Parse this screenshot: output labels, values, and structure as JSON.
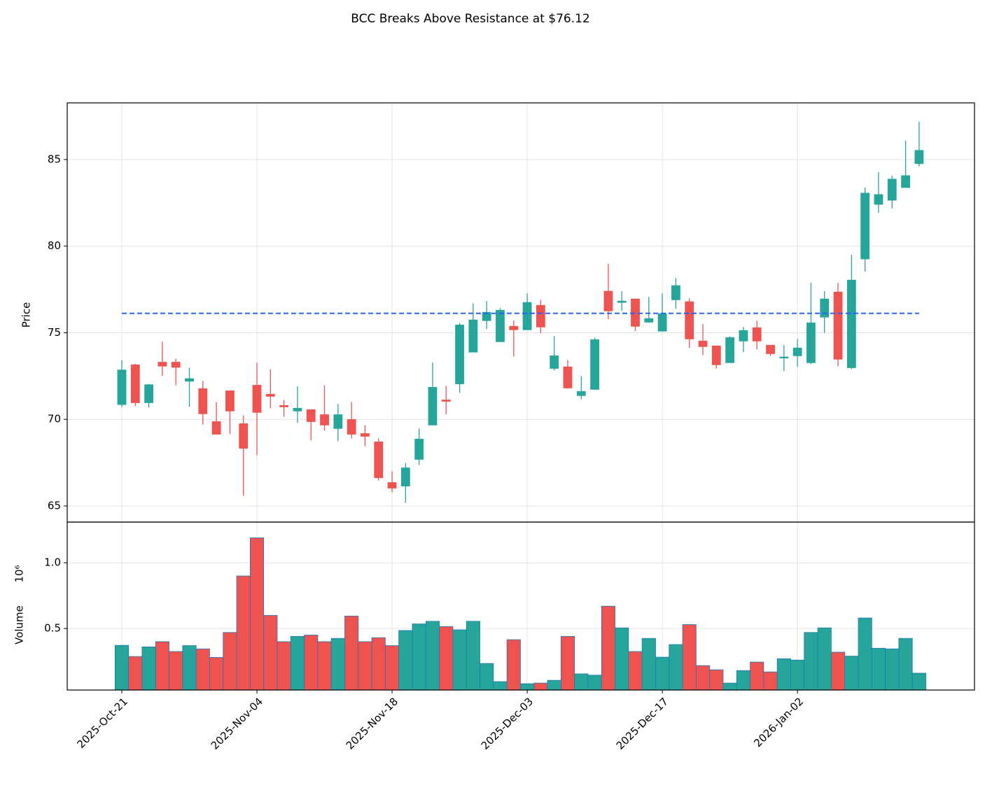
{
  "chart_data": {
    "type": "candlestick",
    "title": "BCC Breaks Above Resistance at $76.12",
    "ylabel": "Price",
    "volume_ylabel": "Volume",
    "volume_scale_label": "10⁶",
    "categories": [
      "2025-Oct-21",
      null,
      null,
      null,
      null,
      null,
      null,
      null,
      null,
      null,
      "2025-Nov-04",
      null,
      null,
      null,
      null,
      null,
      null,
      null,
      null,
      null,
      "2025-Nov-18",
      null,
      null,
      null,
      null,
      null,
      null,
      null,
      null,
      null,
      "2025-Dec-03",
      null,
      null,
      null,
      null,
      null,
      null,
      null,
      null,
      null,
      "2025-Dec-17",
      null,
      null,
      null,
      null,
      null,
      null,
      null,
      null,
      null,
      "2026-Jan-02",
      null,
      null,
      null,
      null,
      null,
      null,
      null,
      null,
      null
    ],
    "open": [
      70.85,
      73.15,
      70.96,
      73.3,
      73.3,
      72.2,
      71.77,
      69.87,
      71.65,
      69.75,
      71.97,
      71.45,
      70.8,
      70.48,
      70.56,
      70.27,
      69.47,
      69.99,
      69.18,
      68.7,
      66.35,
      66.15,
      67.69,
      69.67,
      71.12,
      72.05,
      73.88,
      75.7,
      74.48,
      75.37,
      75.17,
      76.58,
      72.94,
      73.03,
      71.37,
      71.73,
      77.4,
      76.75,
      76.95,
      75.61,
      75.09,
      76.9,
      76.79,
      74.52,
      74.24,
      73.27,
      74.52,
      75.29,
      74.28,
      73.55,
      73.67,
      73.27,
      75.9,
      77.35,
      72.98,
      79.26,
      82.41,
      82.65,
      83.38,
      84.76
    ],
    "high": [
      73.4,
      73.2,
      72.05,
      74.48,
      73.5,
      72.98,
      72.22,
      71.0,
      71.65,
      70.23,
      73.27,
      72.9,
      71.12,
      71.9,
      70.56,
      71.97,
      70.88,
      71.0,
      69.67,
      68.9,
      67.0,
      67.48,
      69.47,
      73.27,
      71.93,
      75.57,
      76.7,
      76.83,
      76.42,
      75.7,
      77.27,
      76.9,
      74.8,
      73.43,
      72.5,
      74.72,
      78.97,
      77.4,
      76.95,
      77.07,
      77.27,
      78.16,
      76.99,
      75.5,
      74.24,
      74.8,
      75.33,
      75.7,
      74.28,
      74.28,
      74.64,
      77.88,
      77.4,
      77.88,
      79.5,
      83.38,
      84.27,
      84.07,
      86.09,
      87.18
    ],
    "low": [
      70.7,
      70.76,
      70.68,
      72.5,
      71.97,
      70.72,
      69.7,
      69.14,
      69.14,
      65.58,
      67.93,
      70.64,
      70.15,
      69.79,
      68.78,
      69.34,
      68.74,
      68.9,
      68.45,
      66.47,
      65.78,
      65.18,
      67.36,
      69.67,
      70.28,
      71.53,
      73.88,
      75.21,
      74.48,
      73.63,
      75.17,
      74.97,
      72.82,
      71.77,
      71.16,
      71.73,
      75.78,
      76.26,
      75.09,
      75.57,
      75.09,
      76.38,
      74.12,
      73.71,
      72.94,
      73.27,
      73.88,
      74.04,
      73.67,
      72.78,
      73.03,
      73.19,
      75.0,
      73.07,
      72.9,
      78.53,
      81.93,
      82.17,
      83.38,
      84.6
    ],
    "close": [
      72.85,
      70.96,
      72.0,
      73.07,
      73.0,
      72.35,
      70.32,
      69.14,
      70.48,
      68.33,
      70.4,
      71.33,
      70.72,
      70.64,
      69.87,
      69.67,
      70.27,
      69.14,
      69.02,
      66.63,
      66.03,
      67.2,
      68.86,
      71.85,
      71.04,
      75.45,
      75.74,
      76.18,
      76.3,
      75.17,
      76.75,
      75.33,
      73.67,
      71.81,
      71.61,
      74.6,
      76.26,
      76.83,
      75.37,
      75.82,
      76.1,
      77.72,
      74.64,
      74.2,
      73.15,
      74.72,
      75.13,
      74.52,
      73.79,
      73.6,
      74.12,
      75.57,
      76.95,
      73.47,
      78.04,
      83.06,
      82.98,
      83.87,
      84.07,
      85.53
    ],
    "volume": [
      0.372,
      0.287,
      0.36,
      0.4,
      0.325,
      0.37,
      0.345,
      0.28,
      0.47,
      0.9,
      1.19,
      0.6,
      0.4,
      0.44,
      0.45,
      0.4,
      0.425,
      0.595,
      0.4,
      0.43,
      0.37,
      0.485,
      0.535,
      0.555,
      0.515,
      0.49,
      0.555,
      0.234,
      0.096,
      0.415,
      0.08,
      0.085,
      0.106,
      0.44,
      0.155,
      0.145,
      0.67,
      0.505,
      0.325,
      0.425,
      0.282,
      0.378,
      0.53,
      0.218,
      0.186,
      0.085,
      0.18,
      0.245,
      0.17,
      0.27,
      0.26,
      0.47,
      0.505,
      0.32,
      0.29,
      0.58,
      0.35,
      0.345,
      0.425,
      0.16
    ],
    "up_color": "#26a69a",
    "down_color": "#ef5350",
    "volume_edge_color": "#1f77b4",
    "resistance": 76.12,
    "resistance_color": "#2962ff",
    "ylim": [
      64.07,
      88.27
    ],
    "yticks": [
      65,
      70,
      75,
      80,
      85
    ],
    "volume_ylim": [
      0.032,
      1.31
    ],
    "volume_yticks": [
      0.5,
      {
        "value": 1,
        "label": "1.0"
      }
    ],
    "xlim": [
      -4.04,
      63.1
    ],
    "grid": true
  }
}
